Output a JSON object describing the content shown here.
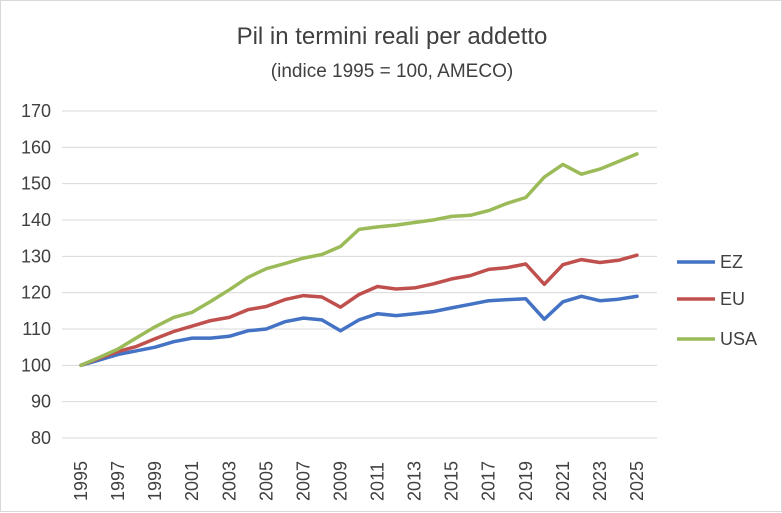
{
  "chart_data": {
    "type": "line",
    "title": "Pil in termini reali per addetto",
    "subtitle": "(indice 1995 = 100, AMECO)",
    "xlabel": "",
    "ylabel": "",
    "x": [
      1995,
      1996,
      1997,
      1998,
      1999,
      2000,
      2001,
      2002,
      2003,
      2004,
      2005,
      2006,
      2007,
      2008,
      2009,
      2010,
      2011,
      2012,
      2013,
      2014,
      2015,
      2016,
      2017,
      2018,
      2019,
      2020,
      2021,
      2022,
      2023,
      2024,
      2025
    ],
    "x_tick_labels": [
      "1995",
      "1997",
      "1999",
      "2001",
      "2003",
      "2005",
      "2007",
      "2009",
      "2011",
      "2013",
      "2015",
      "2017",
      "2019",
      "2021",
      "2023",
      "2025"
    ],
    "y_tick_labels": [
      "80",
      "90",
      "100",
      "110",
      "120",
      "130",
      "140",
      "150",
      "160",
      "170"
    ],
    "ylim": [
      80,
      170
    ],
    "grid": "horizontal",
    "legend_position": "right",
    "series": [
      {
        "name": "EZ",
        "color": "#4472c4",
        "values": [
          100,
          101.5,
          103,
          104,
          105,
          106.5,
          107.5,
          107.5,
          108,
          109.5,
          110,
          112,
          113,
          112.5,
          109.5,
          112.5,
          114.2,
          113.7,
          114.2,
          114.8,
          115.8,
          116.8,
          117.8,
          118.1,
          118.3,
          112.7,
          117.5,
          119,
          117.8,
          118.2,
          119
        ]
      },
      {
        "name": "EU",
        "color": "#c0504d",
        "values": [
          100,
          102,
          103.8,
          105.2,
          107.3,
          109.3,
          110.8,
          112.3,
          113.2,
          115.3,
          116.2,
          118.1,
          119.2,
          118.8,
          116,
          119.5,
          121.7,
          121,
          121.3,
          122.4,
          123.8,
          124.7,
          126.4,
          126.9,
          127.9,
          122.3,
          127.7,
          129.1,
          128.3,
          128.9,
          130.3
        ]
      },
      {
        "name": "USA",
        "color": "#9bbb59",
        "values": [
          100,
          102.2,
          104.5,
          107.6,
          110.6,
          113.2,
          114.6,
          117.6,
          120.8,
          124.2,
          126.6,
          128,
          129.5,
          130.5,
          132.7,
          137.4,
          138.1,
          138.6,
          139.3,
          140,
          141,
          141.3,
          142.6,
          144.6,
          146.2,
          151.8,
          155.3,
          152.6,
          154,
          156.1,
          158.2
        ]
      }
    ]
  }
}
